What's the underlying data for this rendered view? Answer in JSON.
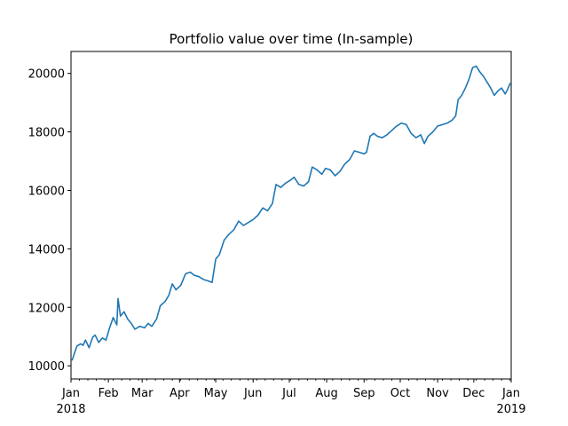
{
  "chart_data": {
    "type": "line",
    "title": "Portfolio value over time (In-sample)",
    "xlabel": "",
    "ylabel": "",
    "x_range": [
      "2018-01-01",
      "2019-01-01"
    ],
    "ylim": [
      9550,
      20750
    ],
    "y_ticks": [
      10000,
      12000,
      14000,
      16000,
      18000,
      20000
    ],
    "x_ticks": [
      {
        "date": "2018-01-01",
        "label": "Jan",
        "sublabel": "2018"
      },
      {
        "date": "2018-02-01",
        "label": "Feb",
        "sublabel": ""
      },
      {
        "date": "2018-03-01",
        "label": "Mar",
        "sublabel": ""
      },
      {
        "date": "2018-04-01",
        "label": "Apr",
        "sublabel": ""
      },
      {
        "date": "2018-05-01",
        "label": "May",
        "sublabel": ""
      },
      {
        "date": "2018-06-01",
        "label": "Jun",
        "sublabel": ""
      },
      {
        "date": "2018-07-01",
        "label": "Jul",
        "sublabel": ""
      },
      {
        "date": "2018-08-01",
        "label": "Aug",
        "sublabel": ""
      },
      {
        "date": "2018-09-01",
        "label": "Sep",
        "sublabel": ""
      },
      {
        "date": "2018-10-01",
        "label": "Oct",
        "sublabel": ""
      },
      {
        "date": "2018-11-01",
        "label": "Nov",
        "sublabel": ""
      },
      {
        "date": "2018-12-01",
        "label": "Dec",
        "sublabel": ""
      },
      {
        "date": "2019-01-01",
        "label": "Jan",
        "sublabel": "2019"
      }
    ],
    "grid": false,
    "legend": "none",
    "series": [
      {
        "color": "#1f77b4",
        "points": [
          [
            "2018-01-02",
            10200
          ],
          [
            "2018-01-04",
            10450
          ],
          [
            "2018-01-06",
            10680
          ],
          [
            "2018-01-09",
            10750
          ],
          [
            "2018-01-11",
            10700
          ],
          [
            "2018-01-13",
            10880
          ],
          [
            "2018-01-16",
            10620
          ],
          [
            "2018-01-19",
            10980
          ],
          [
            "2018-01-21",
            11050
          ],
          [
            "2018-01-24",
            10800
          ],
          [
            "2018-01-27",
            10950
          ],
          [
            "2018-01-30",
            10880
          ],
          [
            "2018-02-02",
            11300
          ],
          [
            "2018-02-05",
            11650
          ],
          [
            "2018-02-08",
            11400
          ],
          [
            "2018-02-09",
            12300
          ],
          [
            "2018-02-11",
            11700
          ],
          [
            "2018-02-14",
            11850
          ],
          [
            "2018-02-17",
            11600
          ],
          [
            "2018-02-20",
            11450
          ],
          [
            "2018-02-23",
            11250
          ],
          [
            "2018-02-27",
            11350
          ],
          [
            "2018-03-03",
            11300
          ],
          [
            "2018-03-06",
            11450
          ],
          [
            "2018-03-09",
            11350
          ],
          [
            "2018-03-13",
            11600
          ],
          [
            "2018-03-16",
            12050
          ],
          [
            "2018-03-20",
            12200
          ],
          [
            "2018-03-23",
            12400
          ],
          [
            "2018-03-26",
            12800
          ],
          [
            "2018-03-29",
            12600
          ],
          [
            "2018-04-02",
            12750
          ],
          [
            "2018-04-06",
            13150
          ],
          [
            "2018-04-10",
            13200
          ],
          [
            "2018-04-13",
            13100
          ],
          [
            "2018-04-17",
            13050
          ],
          [
            "2018-04-21",
            12950
          ],
          [
            "2018-04-25",
            12900
          ],
          [
            "2018-04-28",
            12850
          ],
          [
            "2018-05-01",
            13650
          ],
          [
            "2018-05-04",
            13800
          ],
          [
            "2018-05-08",
            14300
          ],
          [
            "2018-05-12",
            14500
          ],
          [
            "2018-05-16",
            14650
          ],
          [
            "2018-05-20",
            14950
          ],
          [
            "2018-05-24",
            14800
          ],
          [
            "2018-05-28",
            14900
          ],
          [
            "2018-06-01",
            15000
          ],
          [
            "2018-06-05",
            15150
          ],
          [
            "2018-06-09",
            15400
          ],
          [
            "2018-06-13",
            15300
          ],
          [
            "2018-06-17",
            15550
          ],
          [
            "2018-06-20",
            16200
          ],
          [
            "2018-06-24",
            16100
          ],
          [
            "2018-06-28",
            16250
          ],
          [
            "2018-07-02",
            16350
          ],
          [
            "2018-07-05",
            16450
          ],
          [
            "2018-07-09",
            16200
          ],
          [
            "2018-07-13",
            16150
          ],
          [
            "2018-07-17",
            16300
          ],
          [
            "2018-07-20",
            16800
          ],
          [
            "2018-07-24",
            16700
          ],
          [
            "2018-07-28",
            16550
          ],
          [
            "2018-07-31",
            16750
          ],
          [
            "2018-08-04",
            16700
          ],
          [
            "2018-08-08",
            16500
          ],
          [
            "2018-08-12",
            16650
          ],
          [
            "2018-08-16",
            16900
          ],
          [
            "2018-08-20",
            17050
          ],
          [
            "2018-08-24",
            17350
          ],
          [
            "2018-08-28",
            17300
          ],
          [
            "2018-09-01",
            17250
          ],
          [
            "2018-09-03",
            17300
          ],
          [
            "2018-09-06",
            17850
          ],
          [
            "2018-09-09",
            17950
          ],
          [
            "2018-09-12",
            17850
          ],
          [
            "2018-09-16",
            17800
          ],
          [
            "2018-09-20",
            17900
          ],
          [
            "2018-09-24",
            18050
          ],
          [
            "2018-09-28",
            18200
          ],
          [
            "2018-10-02",
            18300
          ],
          [
            "2018-10-06",
            18250
          ],
          [
            "2018-10-10",
            17950
          ],
          [
            "2018-10-14",
            17800
          ],
          [
            "2018-10-18",
            17900
          ],
          [
            "2018-10-21",
            17600
          ],
          [
            "2018-10-24",
            17850
          ],
          [
            "2018-10-28",
            18000
          ],
          [
            "2018-11-01",
            18200
          ],
          [
            "2018-11-05",
            18250
          ],
          [
            "2018-11-09",
            18300
          ],
          [
            "2018-11-13",
            18400
          ],
          [
            "2018-11-16",
            18550
          ],
          [
            "2018-11-18",
            19100
          ],
          [
            "2018-11-21",
            19250
          ],
          [
            "2018-11-24",
            19500
          ],
          [
            "2018-11-27",
            19800
          ],
          [
            "2018-11-30",
            20200
          ],
          [
            "2018-12-03",
            20250
          ],
          [
            "2018-12-06",
            20050
          ],
          [
            "2018-12-09",
            19900
          ],
          [
            "2018-12-12",
            19700
          ],
          [
            "2018-12-15",
            19500
          ],
          [
            "2018-12-18",
            19250
          ],
          [
            "2018-12-21",
            19400
          ],
          [
            "2018-12-24",
            19500
          ],
          [
            "2018-12-27",
            19300
          ],
          [
            "2018-12-29",
            19450
          ],
          [
            "2018-12-31",
            19650
          ]
        ]
      }
    ]
  }
}
